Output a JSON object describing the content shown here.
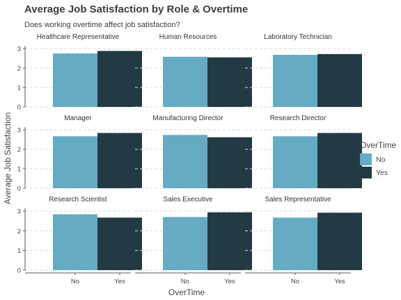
{
  "chart_data": {
    "type": "bar",
    "title": "Average Job Satisfaction by Role & Overtime",
    "subtitle": "Does working overtime affect job satisfaction?",
    "xlabel": "OverTime",
    "ylabel": "Average Job Satisfaction",
    "ylim": [
      0,
      3
    ],
    "yticks": [
      "0",
      "1",
      "2",
      "3"
    ],
    "categories": [
      "No",
      "Yes"
    ],
    "grid": true,
    "legend": {
      "title": "OverTime",
      "placement": "right",
      "entries": [
        {
          "label": "No",
          "color": "#66abc4"
        },
        {
          "label": "Yes",
          "color": "#233a44"
        }
      ]
    },
    "panels": [
      {
        "name": "Healthcare Representative",
        "values": [
          2.75,
          2.88
        ]
      },
      {
        "name": "Human Resources",
        "values": [
          2.58,
          2.55
        ]
      },
      {
        "name": "Laboratory Technician",
        "values": [
          2.68,
          2.72
        ]
      },
      {
        "name": "Manager",
        "values": [
          2.67,
          2.84
        ]
      },
      {
        "name": "Manufacturing Director",
        "values": [
          2.74,
          2.62
        ]
      },
      {
        "name": "Research Director",
        "values": [
          2.67,
          2.84
        ]
      },
      {
        "name": "Research Scientist",
        "values": [
          2.84,
          2.67
        ]
      },
      {
        "name": "Sales Executive",
        "values": [
          2.7,
          2.94
        ]
      },
      {
        "name": "Sales Representative",
        "values": [
          2.67,
          2.92
        ]
      }
    ]
  }
}
